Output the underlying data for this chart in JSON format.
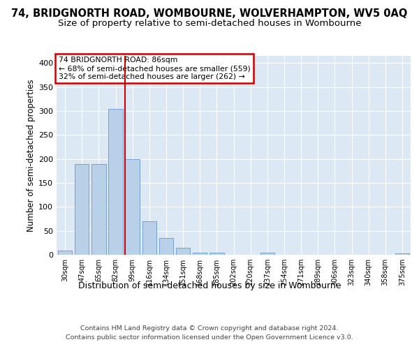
{
  "title": "74, BRIDGNORTH ROAD, WOMBOURNE, WOLVERHAMPTON, WV5 0AQ",
  "subtitle": "Size of property relative to semi-detached houses in Wombourne",
  "xlabel": "Distribution of semi-detached houses by size in Wombourne",
  "ylabel": "Number of semi-detached properties",
  "footer_line1": "Contains HM Land Registry data © Crown copyright and database right 2024.",
  "footer_line2": "Contains public sector information licensed under the Open Government Licence v3.0.",
  "bar_labels": [
    "30sqm",
    "47sqm",
    "65sqm",
    "82sqm",
    "99sqm",
    "116sqm",
    "134sqm",
    "151sqm",
    "168sqm",
    "185sqm",
    "202sqm",
    "220sqm",
    "237sqm",
    "254sqm",
    "271sqm",
    "289sqm",
    "306sqm",
    "323sqm",
    "340sqm",
    "358sqm",
    "375sqm"
  ],
  "bar_values": [
    9,
    189,
    190,
    305,
    200,
    70,
    35,
    15,
    5,
    5,
    0,
    0,
    4,
    0,
    0,
    0,
    0,
    0,
    0,
    0,
    3
  ],
  "bar_color": "#b8d0e8",
  "bar_edge_color": "#6699cc",
  "annotation_box_text": "74 BRIDGNORTH ROAD: 86sqm\n← 68% of semi-detached houses are smaller (559)\n32% of semi-detached houses are larger (262) →",
  "annotation_box_edge_color": "#cc0000",
  "vline_x_index": 3.55,
  "vline_color": "#cc0000",
  "ylim": [
    0,
    415
  ],
  "yticks": [
    0,
    50,
    100,
    150,
    200,
    250,
    300,
    350,
    400
  ],
  "bg_color": "#ffffff",
  "plot_bg_color": "#dde8f5",
  "grid_color": "#ffffff",
  "title_fontsize": 10.5,
  "subtitle_fontsize": 9.5,
  "xlabel_fontsize": 9,
  "ylabel_fontsize": 8.5
}
